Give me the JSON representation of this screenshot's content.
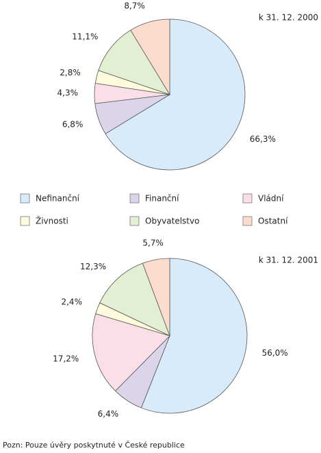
{
  "chart_data": [
    {
      "type": "pie",
      "title": "k 31. 12. 2000",
      "categories": [
        "Nefinanční",
        "Finanční",
        "Vládní",
        "Živnosti",
        "Obyvatelstvo",
        "Ostatní"
      ],
      "values": [
        66.3,
        6.8,
        4.3,
        2.8,
        11.1,
        8.7
      ],
      "value_labels": [
        "66,3%",
        "6,8%",
        "4,3%",
        "2,8%",
        "11,1%",
        "8,7%"
      ],
      "colors": [
        "#d7ebfa",
        "#dcd5ea",
        "#fbdfe8",
        "#fdfbdc",
        "#e3efd2",
        "#fcdccc"
      ]
    },
    {
      "type": "pie",
      "title": "k 31. 12. 2001",
      "categories": [
        "Nefinanční",
        "Finanční",
        "Vládní",
        "Živnosti",
        "Obyvatelstvo",
        "Ostatní"
      ],
      "values": [
        56.0,
        6.4,
        17.2,
        2.4,
        12.3,
        5.7
      ],
      "value_labels": [
        "56,0%",
        "6,4%",
        "17,2%",
        "2,4%",
        "12,3%",
        "5,7%"
      ],
      "colors": [
        "#d7ebfa",
        "#dcd5ea",
        "#fbdfe8",
        "#fdfbdc",
        "#e3efd2",
        "#fcdccc"
      ]
    }
  ],
  "note": "Pozn: Pouze úvěry poskytnuté v České republice"
}
